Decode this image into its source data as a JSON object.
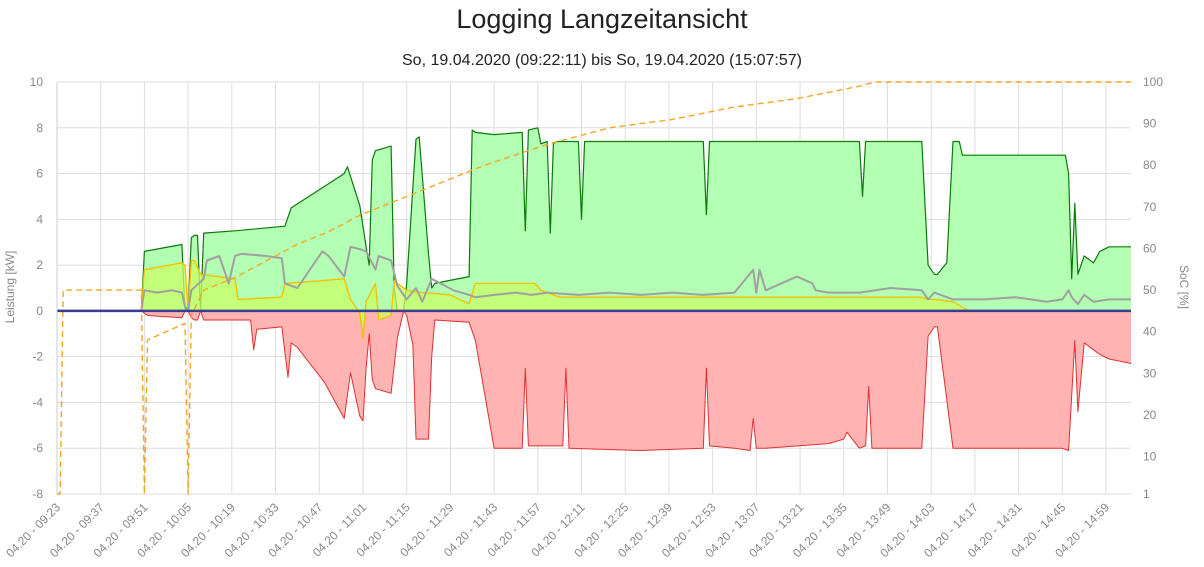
{
  "chart_data": {
    "type": "line",
    "title": "Logging Langzeitansicht",
    "subtitle": "So, 19.04.2020 (09:22:11) bis So, 19.04.2020 (15:07:57)",
    "ylabel_left": "Leistung [kW]",
    "ylabel_right": "SoC [%]",
    "ylim_left": [
      -8,
      10
    ],
    "ylim_right": [
      1,
      100
    ],
    "yticks_left": [
      "10",
      "8",
      "6",
      "4",
      "2",
      "0",
      "-2",
      "-4",
      "-6",
      "-8"
    ],
    "yticks_right": [
      "100",
      "90",
      "80",
      "70",
      "60",
      "50",
      "40",
      "30",
      "20",
      "10",
      "1"
    ],
    "xlim": [
      "09:23",
      "15:07"
    ],
    "xticks": [
      "04.20 - 09:23",
      "04.20 - 09:37",
      "04.20 - 09:51",
      "04.20 - 10:05",
      "04.20 - 10:19",
      "04.20 - 10:33",
      "04.20 - 10:47",
      "04.20 - 11:01",
      "04.20 - 11:15",
      "04.20 - 11:29",
      "04.20 - 11:43",
      "04.20 - 11:57",
      "04.20 - 12:11",
      "04.20 - 12:25",
      "04.20 - 12:39",
      "04.20 - 12:53",
      "04.20 - 13:07",
      "04.20 - 13:21",
      "04.20 - 13:35",
      "04.20 - 13:49",
      "04.20 - 14:03",
      "04.20 - 14:17",
      "04.20 - 14:31",
      "04.20 - 14:45",
      "04.20 - 14:59"
    ],
    "grid": true,
    "colors": {
      "pv_fill": "#b3ffb3",
      "pv_line": "#0a7a0a",
      "feed_fill": "#ffb3b3",
      "feed_line": "#e23030",
      "battery_fill": "#c8ff66",
      "battery_line": "#f2c200",
      "consumption_line": "#a0a0a0",
      "soc_line": "#f5a623",
      "zero_line": "#3b3b8f"
    },
    "series": [
      {
        "key": "pv",
        "axis": "left",
        "x": [
          "09:23",
          "09:50",
          "09:51",
          "10:03",
          "10:04",
          "10:05",
          "10:06",
          "10:07",
          "10:08",
          "10:09",
          "10:10",
          "10:20",
          "10:36",
          "10:38",
          "10:55",
          "10:56",
          "11:00",
          "11:02",
          "11:03",
          "11:04",
          "11:05",
          "11:10",
          "11:11",
          "11:12",
          "11:14",
          "11:15",
          "11:18",
          "11:19",
          "11:22",
          "11:23",
          "11:24",
          "11:35",
          "11:36",
          "11:37",
          "11:43",
          "11:52",
          "11:53",
          "11:54",
          "11:57",
          "11:58",
          "12:00",
          "12:01",
          "12:02",
          "12:03",
          "12:04",
          "12:09",
          "12:10",
          "12:11",
          "12:12",
          "12:13",
          "12:35",
          "12:50",
          "12:51",
          "12:52",
          "12:53",
          "12:54",
          "13:00",
          "13:20",
          "13:40",
          "13:41",
          "13:42",
          "13:43",
          "13:44",
          "14:00",
          "14:02",
          "14:04",
          "14:05",
          "14:08",
          "14:10",
          "14:12",
          "14:13",
          "14:15",
          "14:30",
          "14:44",
          "14:46",
          "14:47",
          "14:48",
          "14:49",
          "14:50",
          "14:52",
          "14:55",
          "14:57",
          "15:00",
          "15:07"
        ],
        "y": [
          0,
          0,
          2.6,
          2.9,
          0,
          0,
          3.2,
          3.3,
          3.3,
          0,
          3.4,
          3.5,
          3.7,
          4.5,
          6.0,
          6.3,
          4.6,
          2.8,
          2.0,
          6.6,
          7.0,
          7.2,
          1.0,
          0,
          0,
          1.2,
          7.5,
          7.6,
          2.5,
          1.0,
          1.2,
          1.5,
          7.9,
          7.8,
          7.7,
          7.8,
          3.5,
          7.9,
          8.0,
          7.3,
          7.4,
          3.4,
          7.3,
          7.4,
          7.4,
          7.4,
          7.4,
          4.0,
          7.4,
          7.4,
          7.4,
          7.4,
          4.2,
          7.4,
          7.4,
          7.4,
          7.4,
          7.4,
          7.4,
          5.0,
          7.4,
          7.4,
          7.4,
          7.4,
          2.0,
          1.6,
          1.6,
          2.1,
          7.4,
          7.4,
          6.8,
          6.8,
          6.8,
          6.8,
          6.8,
          6.0,
          1.4,
          4.7,
          1.6,
          2.4,
          2.1,
          2.6,
          2.8,
          2.8
        ]
      },
      {
        "key": "feed_in",
        "axis": "left",
        "x": [
          "09:23",
          "09:50",
          "09:52",
          "10:03",
          "10:04",
          "10:05",
          "10:06",
          "10:07",
          "10:08",
          "10:09",
          "10:10",
          "10:20",
          "10:25",
          "10:26",
          "10:27",
          "10:35",
          "10:37",
          "10:38",
          "10:40",
          "10:48",
          "10:49",
          "10:55",
          "10:57",
          "11:00",
          "11:01",
          "11:02",
          "11:03",
          "11:04",
          "11:05",
          "11:10",
          "11:12",
          "11:14",
          "11:15",
          "11:17",
          "11:18",
          "11:22",
          "11:23",
          "11:24",
          "11:35",
          "11:37",
          "11:43",
          "11:52",
          "11:53",
          "11:54",
          "12:05",
          "12:06",
          "12:07",
          "12:30",
          "12:50",
          "12:51",
          "12:52",
          "13:00",
          "13:05",
          "13:06",
          "13:07",
          "13:10",
          "13:30",
          "13:35",
          "13:36",
          "13:40",
          "13:42",
          "13:43",
          "13:44",
          "14:00",
          "14:02",
          "14:04",
          "14:05",
          "14:10",
          "14:12",
          "14:13",
          "14:20",
          "14:45",
          "14:47",
          "14:49",
          "14:50",
          "14:52",
          "14:55",
          "14:57",
          "15:00",
          "15:07"
        ],
        "y": [
          0,
          0,
          -0.2,
          -0.3,
          0,
          0,
          -0.3,
          -0.4,
          -0.4,
          0,
          -0.4,
          -0.4,
          -0.4,
          -1.7,
          -0.8,
          -0.7,
          -2.9,
          -1.4,
          -1.6,
          -3.0,
          -3.2,
          -4.7,
          -2.7,
          -4.6,
          -4.8,
          -2.5,
          -1.0,
          -3.0,
          -3.4,
          -3.6,
          -1.2,
          0,
          -0.2,
          -1.5,
          -5.6,
          -5.6,
          -2.0,
          -0.4,
          -0.5,
          -1.3,
          -6.0,
          -6.0,
          -2.5,
          -5.9,
          -5.9,
          -2.5,
          -6.0,
          -6.1,
          -6.0,
          -2.5,
          -5.9,
          -6.0,
          -6.1,
          -4.7,
          -6.0,
          -6.0,
          -5.8,
          -5.6,
          -5.3,
          -6.0,
          -5.9,
          -3.3,
          -6.0,
          -6.0,
          -1.1,
          -0.7,
          -0.7,
          -6.0,
          -6.0,
          -6.0,
          -6.0,
          -6.0,
          -6.1,
          -1.3,
          -4.4,
          -1.4,
          -1.7,
          -1.9,
          -2.1,
          -2.3
        ]
      },
      {
        "key": "battery",
        "axis": "left",
        "x": [
          "09:23",
          "09:50",
          "09:51",
          "10:03",
          "10:04",
          "10:05",
          "10:06",
          "10:07",
          "10:09",
          "10:20",
          "10:21",
          "10:35",
          "10:36",
          "10:46",
          "10:55",
          "10:57",
          "11:00",
          "11:01",
          "11:02",
          "11:05",
          "11:06",
          "11:10",
          "11:11",
          "11:15",
          "11:20",
          "11:29",
          "11:35",
          "11:37",
          "11:56",
          "11:58",
          "12:00",
          "12:02",
          "12:04",
          "12:10",
          "14:00",
          "14:02",
          "14:04",
          "14:10",
          "14:15",
          "15:07"
        ],
        "y": [
          0,
          0,
          1.8,
          2.1,
          2.0,
          0,
          2.2,
          2.2,
          1.6,
          1.4,
          0.5,
          0.6,
          1.2,
          1.3,
          1.4,
          0.5,
          -0.1,
          -1.2,
          0.4,
          1.2,
          -0.4,
          -0.2,
          1.3,
          0.9,
          0.8,
          0.7,
          0.3,
          1.2,
          1.2,
          0.9,
          0.8,
          0.7,
          0.6,
          0.6,
          0.6,
          0.5,
          0.5,
          0.4,
          0,
          0
        ]
      },
      {
        "key": "consumption",
        "axis": "left",
        "x": [
          "09:23",
          "09:50",
          "09:51",
          "09:55",
          "10:00",
          "10:03",
          "10:04",
          "10:05",
          "10:06",
          "10:10",
          "10:11",
          "10:15",
          "10:18",
          "10:20",
          "10:22",
          "10:30",
          "10:35",
          "10:36",
          "10:40",
          "10:46",
          "10:48",
          "10:50",
          "10:55",
          "10:57",
          "11:00",
          "11:02",
          "11:05",
          "11:06",
          "11:10",
          "11:12",
          "11:15",
          "11:18",
          "11:20",
          "11:23",
          "11:30",
          "11:35",
          "11:37",
          "11:43",
          "11:50",
          "11:55",
          "12:00",
          "12:10",
          "12:20",
          "12:30",
          "12:40",
          "12:50",
          "13:00",
          "13:06",
          "13:07",
          "13:08",
          "13:10",
          "13:20",
          "13:25",
          "13:26",
          "13:30",
          "13:40",
          "13:50",
          "14:00",
          "14:02",
          "14:04",
          "14:10",
          "14:20",
          "14:30",
          "14:40",
          "14:45",
          "14:47",
          "14:48",
          "14:50",
          "14:52",
          "14:55",
          "15:00",
          "15:07"
        ],
        "y": [
          0,
          0,
          0.9,
          0.8,
          0.9,
          0.8,
          0.2,
          0,
          0.9,
          1.4,
          2.2,
          2.4,
          1.2,
          2.4,
          2.5,
          2.4,
          2.3,
          1.2,
          1.0,
          2.2,
          2.6,
          2.4,
          1.5,
          2.8,
          2.7,
          2.6,
          1.8,
          2.4,
          2.2,
          1.1,
          0.5,
          1.0,
          0.4,
          1.4,
          0.9,
          0.7,
          0.6,
          0.7,
          0.8,
          0.7,
          0.8,
          0.7,
          0.8,
          0.7,
          0.8,
          0.7,
          0.8,
          1.8,
          0.8,
          1.8,
          0.9,
          1.5,
          1.2,
          0.9,
          0.8,
          0.8,
          1.0,
          0.9,
          0.5,
          0.8,
          0.5,
          0.5,
          0.6,
          0.4,
          0.5,
          0.9,
          0.6,
          0.3,
          0.7,
          0.4,
          0.5,
          0.5
        ]
      },
      {
        "key": "soc",
        "axis": "right",
        "x": [
          "09:23",
          "09:24",
          "09:25",
          "09:50",
          "09:51",
          "09:52",
          "10:04",
          "10:05",
          "10:06",
          "10:10",
          "10:20",
          "10:30",
          "10:40",
          "10:50",
          "11:00",
          "11:10",
          "11:20",
          "11:30",
          "11:40",
          "11:50",
          "12:00",
          "12:10",
          "12:20",
          "12:30",
          "12:40",
          "12:50",
          "13:00",
          "13:10",
          "13:20",
          "13:30",
          "13:40",
          "13:45",
          "13:50",
          "15:07"
        ],
        "y": [
          1,
          1,
          50,
          50,
          1,
          38,
          42,
          1,
          44,
          50,
          53,
          57,
          61,
          64,
          68,
          71,
          74,
          77,
          80,
          82.5,
          85,
          87,
          89,
          90,
          91,
          92.5,
          94,
          95,
          96,
          97.5,
          99,
          100,
          100,
          100
        ]
      }
    ]
  }
}
